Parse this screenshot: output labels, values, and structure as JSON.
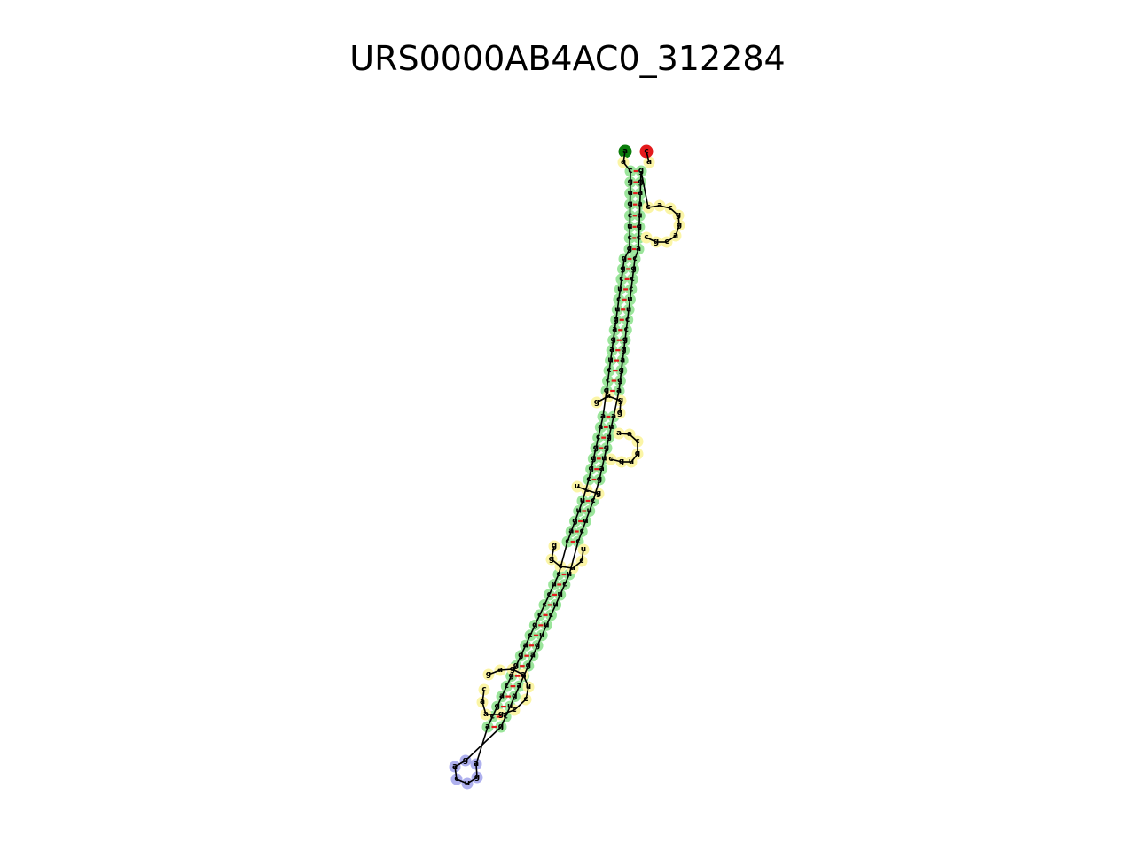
{
  "title": "URS0000AB4AC0_312284",
  "colors": {
    "stem": "#9be59b",
    "loop": "#fbf5a6",
    "hairpin": "#aeb0ee",
    "five_prime": "#0b7d0b",
    "three_prime": "#e31a1c",
    "pair": "#e31a1c",
    "backbone": "#000000"
  },
  "nucleotides": [
    "a",
    "a",
    "c",
    "g",
    "u",
    "g",
    "c",
    "u",
    "c",
    "g",
    "g",
    "g",
    "c",
    "u",
    "c",
    "u",
    "g",
    "a",
    "g",
    "a",
    "u",
    "c",
    "c",
    "g",
    "a",
    "a",
    "c",
    "g",
    "g",
    "g",
    "c",
    "u",
    "u",
    "g",
    "a",
    "c",
    "c",
    "u",
    "c",
    "c",
    "c",
    "g",
    "c",
    "a",
    "g",
    "g",
    "g",
    "c",
    "a",
    "g",
    "c",
    "a",
    "a",
    "g",
    "u",
    "c",
    "a",
    "g",
    "g",
    "c",
    "u",
    "g",
    "a",
    "a",
    "g",
    "a",
    "g",
    "u",
    "u",
    "c",
    "u",
    "u",
    "c",
    "u",
    "c",
    "c",
    "u",
    "u",
    "c",
    "g",
    "a",
    "u",
    "g",
    "g",
    "u",
    "a",
    "a",
    "g",
    "g",
    "a",
    "g",
    "g",
    "c",
    "c",
    "u",
    "u",
    "c",
    "c",
    "g",
    "c",
    "a",
    "c",
    "g",
    "u",
    "a",
    "a",
    "g",
    "g",
    "c",
    "a",
    "c",
    "g",
    "g",
    "a",
    "c",
    "g",
    "c",
    "a",
    "c",
    "g",
    "a",
    "g",
    "g"
  ]
}
